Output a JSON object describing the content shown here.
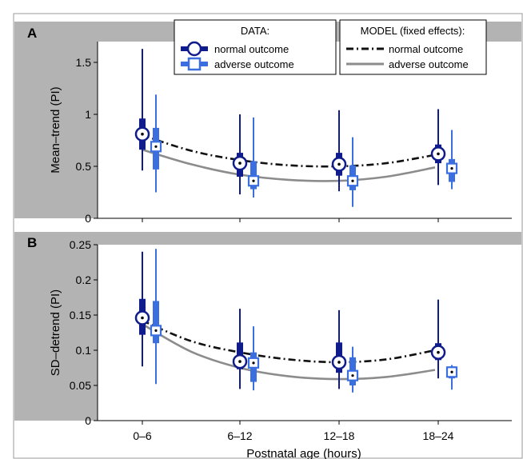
{
  "figure": {
    "xlabel": "Postnatal age (hours)",
    "categories": [
      "0–6",
      "6–12",
      "12–18",
      "18–24"
    ]
  },
  "legend_data": {
    "title": "DATA:",
    "items": [
      "normal outcome",
      "adverse outcome"
    ]
  },
  "legend_model": {
    "title": "MODEL (fixed effects):",
    "items": [
      "normal outcome",
      "adverse outcome"
    ]
  },
  "colors": {
    "normal": "#101c8c",
    "adverse": "#3b6fe0",
    "model_normal": "#111111",
    "model_adverse": "#8c8c8c",
    "panel_bar": "#b3b3b3"
  },
  "chart_data": [
    {
      "panel": "A",
      "type": "box",
      "ylabel": "Mean–trend (PI)",
      "ylim": [
        0,
        1.7
      ],
      "yticks": [
        0,
        0.5,
        1,
        1.5
      ],
      "ytick_labels": [
        "0",
        "0.5",
        "1",
        "1.5"
      ],
      "categories": [
        "0–6",
        "6–12",
        "12–18",
        "18–24"
      ],
      "series": [
        {
          "name": "normal outcome",
          "boxes": [
            {
              "whislo": 0.46,
              "q1": 0.66,
              "med": 0.81,
              "q3": 0.96,
              "whishi": 1.63
            },
            {
              "whislo": 0.23,
              "q1": 0.4,
              "med": 0.53,
              "q3": 0.63,
              "whishi": 1.0
            },
            {
              "whislo": 0.26,
              "q1": 0.41,
              "med": 0.52,
              "q3": 0.63,
              "whishi": 1.04
            },
            {
              "whislo": 0.32,
              "q1": 0.53,
              "med": 0.62,
              "q3": 0.71,
              "whishi": 1.05
            }
          ]
        },
        {
          "name": "adverse outcome",
          "boxes": [
            {
              "whislo": 0.25,
              "q1": 0.47,
              "med": 0.69,
              "q3": 0.87,
              "whishi": 1.19
            },
            {
              "whislo": 0.2,
              "q1": 0.28,
              "med": 0.36,
              "q3": 0.55,
              "whishi": 0.97
            },
            {
              "whislo": 0.11,
              "q1": 0.27,
              "med": 0.36,
              "q3": 0.51,
              "whishi": 0.78
            },
            {
              "whislo": 0.28,
              "q1": 0.35,
              "med": 0.48,
              "q3": 0.57,
              "whishi": 0.85
            }
          ]
        }
      ],
      "model": [
        {
          "name": "normal outcome",
          "style": "dash-dot",
          "x": [
            0,
            0.5,
            1,
            1.5,
            2,
            2.5,
            3
          ],
          "y": [
            0.8,
            0.65,
            0.56,
            0.51,
            0.5,
            0.53,
            0.61
          ]
        },
        {
          "name": "adverse outcome",
          "style": "solid",
          "x": [
            0,
            0.5,
            1,
            1.5,
            2,
            2.5,
            3
          ],
          "y": [
            0.66,
            0.52,
            0.42,
            0.37,
            0.36,
            0.4,
            0.49
          ]
        }
      ]
    },
    {
      "panel": "B",
      "type": "box",
      "ylabel": "SD–detrend (PI)",
      "ylim": [
        0,
        0.25
      ],
      "yticks": [
        0,
        0.05,
        0.1,
        0.15,
        0.2,
        0.25
      ],
      "ytick_labels": [
        "0",
        "0.05",
        "0.1",
        "0.15",
        "0.2",
        "0.25"
      ],
      "categories": [
        "0–6",
        "6–12",
        "12–18",
        "18–24"
      ],
      "series": [
        {
          "name": "normal outcome",
          "boxes": [
            {
              "whislo": 0.077,
              "q1": 0.122,
              "med": 0.146,
              "q3": 0.173,
              "whishi": 0.24
            },
            {
              "whislo": 0.045,
              "q1": 0.073,
              "med": 0.084,
              "q3": 0.111,
              "whishi": 0.159
            },
            {
              "whislo": 0.045,
              "q1": 0.068,
              "med": 0.083,
              "q3": 0.111,
              "whishi": 0.157
            },
            {
              "whislo": 0.06,
              "q1": 0.086,
              "med": 0.097,
              "q3": 0.11,
              "whishi": 0.172
            }
          ]
        },
        {
          "name": "adverse outcome",
          "boxes": [
            {
              "whislo": 0.052,
              "q1": 0.11,
              "med": 0.128,
              "q3": 0.17,
              "whishi": 0.244
            },
            {
              "whislo": 0.043,
              "q1": 0.055,
              "med": 0.082,
              "q3": 0.097,
              "whishi": 0.134
            },
            {
              "whislo": 0.04,
              "q1": 0.05,
              "med": 0.064,
              "q3": 0.09,
              "whishi": 0.105
            },
            {
              "whislo": 0.044,
              "q1": 0.06,
              "med": 0.069,
              "q3": 0.077,
              "whishi": 0.079
            }
          ]
        }
      ],
      "model": [
        {
          "name": "normal outcome",
          "style": "dash-dot",
          "x": [
            0,
            0.5,
            1,
            1.5,
            2,
            2.5,
            3
          ],
          "y": [
            0.142,
            0.113,
            0.097,
            0.087,
            0.083,
            0.087,
            0.1
          ]
        },
        {
          "name": "adverse outcome",
          "style": "solid",
          "x": [
            0,
            0.5,
            1,
            1.5,
            2,
            2.5,
            3
          ],
          "y": [
            0.137,
            0.098,
            0.075,
            0.063,
            0.059,
            0.062,
            0.072
          ]
        }
      ]
    }
  ]
}
